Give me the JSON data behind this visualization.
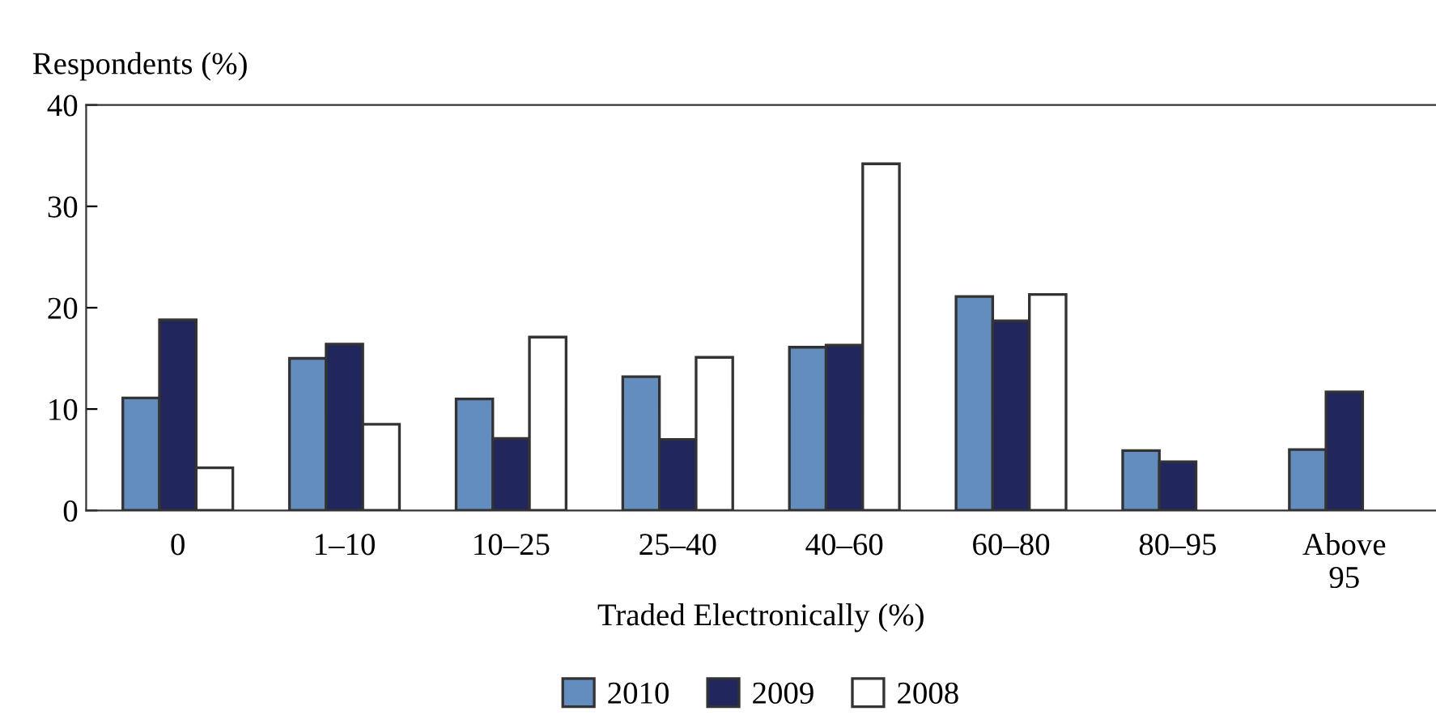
{
  "chart_data": {
    "type": "bar",
    "ylabel": "Respondents (%)",
    "xlabel": "Traded Electronically (%)",
    "categories": [
      "0",
      "1–10",
      "10–25",
      "25–40",
      "40–60",
      "60–80",
      "80–95",
      "Above\n95"
    ],
    "series": [
      {
        "name": "2010",
        "color": "#648dbf",
        "values": [
          11.1,
          15.0,
          11.0,
          13.2,
          16.1,
          21.1,
          5.9,
          6.0
        ]
      },
      {
        "name": "2009",
        "color": "#21265c",
        "values": [
          18.8,
          16.4,
          7.1,
          7.0,
          16.3,
          18.7,
          4.8,
          11.7
        ]
      },
      {
        "name": "2008",
        "color": "#ffffff",
        "values": [
          4.2,
          8.5,
          17.1,
          15.1,
          34.2,
          21.3,
          null,
          null
        ]
      }
    ],
    "ylim": [
      0,
      40
    ],
    "yticks": [
      0,
      10,
      20,
      30,
      40
    ],
    "grid": false,
    "legend": "bottom"
  }
}
